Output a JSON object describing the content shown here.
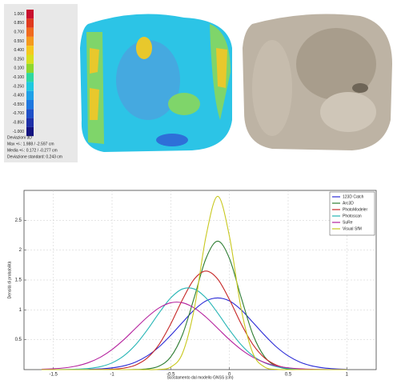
{
  "colorbar": {
    "labels": [
      "1.000",
      "0.850",
      "0.700",
      "0.550",
      "0.400",
      "0.250",
      "0.100",
      "-0.100",
      "-0.250",
      "-0.400",
      "-0.550",
      "-0.700",
      "-0.850",
      "-1.000"
    ],
    "caption": [
      "Deviazioni 3D",
      "Max +/-: 1.988 / -2.597 cm",
      "Media +/-: 0.172 / -0.277 cm",
      "Deviazione standard: 0.243 cm"
    ]
  },
  "chart_data": {
    "type": "line",
    "x_label": "Scostamento dal modello GNSS (cm)",
    "y_label": "Densità di probabilità",
    "x": [
      -1.6,
      -1.5,
      -1.4,
      -1.3,
      -1.2,
      -1.1,
      -1.0,
      -0.9,
      -0.8,
      -0.7,
      -0.6,
      -0.5,
      -0.4,
      -0.3,
      -0.2,
      -0.1,
      0,
      0.1,
      0.2,
      0.3,
      0.4,
      0.5,
      0.6,
      0.7,
      0.8,
      0.9,
      1.0
    ],
    "series": [
      {
        "name": "123D Catch",
        "color": "#2b2bd6",
        "values": [
          0,
          0,
          0,
          0.002,
          0.005,
          0.012,
          0.029,
          0.063,
          0.126,
          0.23,
          0.38,
          0.575,
          0.79,
          1.0,
          1.15,
          1.2,
          1.15,
          1.0,
          0.79,
          0.575,
          0.38,
          0.23,
          0.126,
          0.063,
          0.029,
          0.012,
          0.005
        ]
      },
      {
        "name": "Arc3D",
        "color": "#2e7d32",
        "values": [
          0,
          0,
          0,
          0,
          0,
          0,
          0,
          0,
          0.002,
          0.012,
          0.058,
          0.213,
          0.586,
          1.206,
          1.86,
          2.15,
          1.86,
          1.206,
          0.586,
          0.213,
          0.058,
          0.012,
          0.002,
          0,
          0,
          0,
          0
        ]
      },
      {
        "name": "PhotoModeler",
        "color": "#c62828",
        "values": [
          0,
          0,
          0,
          0,
          0,
          0.002,
          0.007,
          0.025,
          0.076,
          0.195,
          0.42,
          0.765,
          1.172,
          1.515,
          1.65,
          1.515,
          1.172,
          0.765,
          0.42,
          0.195,
          0.076,
          0.025,
          0.007,
          0.002,
          0,
          0,
          0
        ]
      },
      {
        "name": "Photoscan",
        "color": "#26b5b5",
        "values": [
          0,
          0.001,
          0.002,
          0.007,
          0.019,
          0.049,
          0.113,
          0.23,
          0.415,
          0.665,
          0.947,
          1.2,
          1.35,
          1.35,
          1.2,
          0.947,
          0.665,
          0.415,
          0.23,
          0.113,
          0.049,
          0.019,
          0.007,
          0.002,
          0.001,
          0,
          0
        ]
      },
      {
        "name": "SuRe",
        "color": "#b5229e",
        "values": [
          0.006,
          0.014,
          0.03,
          0.062,
          0.118,
          0.207,
          0.336,
          0.501,
          0.691,
          0.879,
          1.032,
          1.119,
          1.119,
          1.032,
          0.879,
          0.691,
          0.501,
          0.336,
          0.207,
          0.118,
          0.062,
          0.03,
          0.014,
          0.006,
          0.002,
          0.001,
          0
        ]
      },
      {
        "name": "Visual SfM",
        "color": "#c8c81e",
        "values": [
          0,
          0,
          0,
          0,
          0,
          0,
          0,
          0,
          0,
          0,
          0.004,
          0.043,
          0.273,
          1.015,
          2.23,
          2.9,
          2.23,
          1.015,
          0.273,
          0.043,
          0.004,
          0,
          0,
          0,
          0,
          0,
          0
        ]
      }
    ],
    "xlim": [
      -1.75,
      1.25
    ],
    "ylim": [
      0,
      3
    ],
    "xticks": [
      -1.5,
      -1,
      -0.5,
      0,
      0.5,
      1
    ],
    "yticks": [
      0.5,
      1,
      1.5,
      2,
      2.5
    ],
    "grid": true,
    "legend": "upper right"
  }
}
